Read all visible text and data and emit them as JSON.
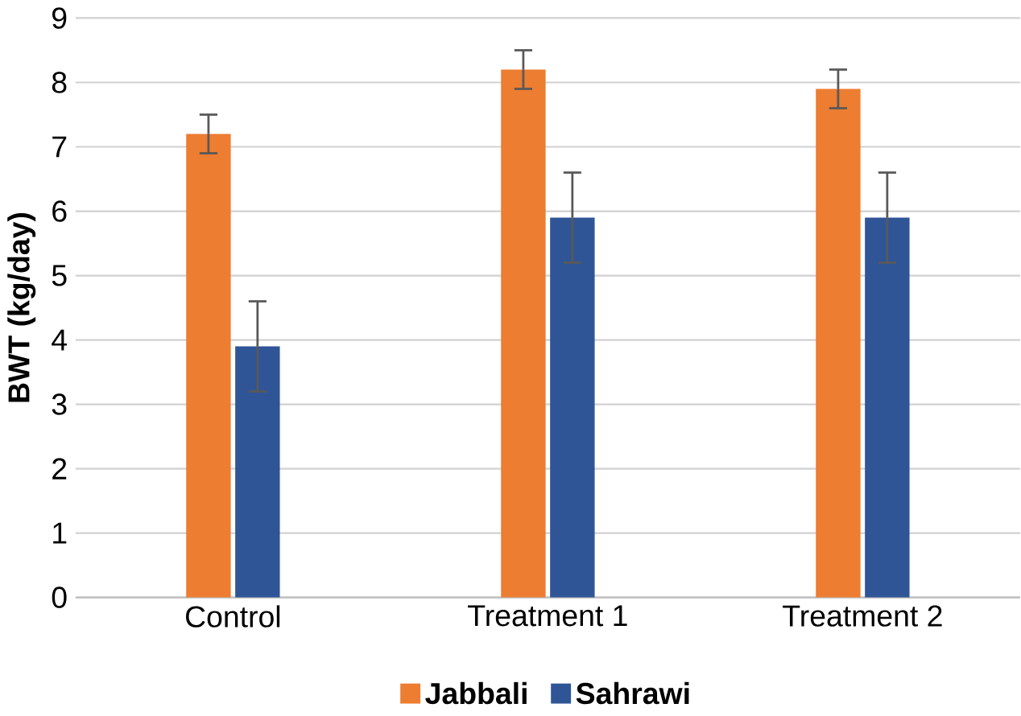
{
  "chart_data": {
    "type": "bar",
    "ylabel": "BWT (kg/day)",
    "categories": [
      "Control",
      "Treatment 1",
      "Treatment 2"
    ],
    "series": [
      {
        "name": "Jabbali",
        "color": "#ed7d31",
        "values": [
          7.2,
          8.2,
          7.9
        ],
        "errors": [
          0.3,
          0.3,
          0.3
        ]
      },
      {
        "name": "Sahrawi",
        "color": "#2f5597",
        "values": [
          3.9,
          5.9,
          5.9
        ],
        "errors": [
          0.7,
          0.7,
          0.7
        ]
      }
    ],
    "ylim": [
      0,
      9
    ],
    "yticks": [
      0,
      1,
      2,
      3,
      4,
      5,
      6,
      7,
      8,
      9
    ],
    "grid": "y",
    "legend": "bottom"
  }
}
